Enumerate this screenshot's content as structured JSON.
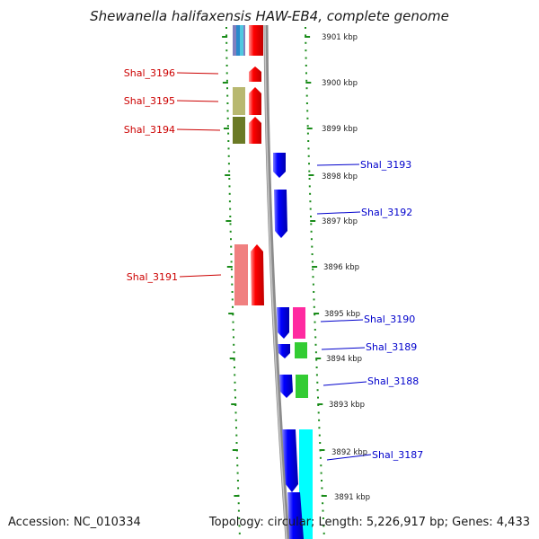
{
  "title": "Shewanella halifaxensis HAW-EB4, complete genome",
  "accession": "Accession: NC_010334",
  "summary": "Topology: circular; Length: 5,226,917 bp; Genes: 4,433",
  "scale_labels": [
    "3901 kbp",
    "3900 kbp",
    "3899 kbp",
    "3898 kbp",
    "3897 kbp",
    "3896 kbp",
    "3895 kbp",
    "3894 kbp",
    "3893 kbp",
    "3892 kbp",
    "3891 kbp"
  ],
  "left_genes": [
    {
      "label": "Shal_3196",
      "color": "#ff0000"
    },
    {
      "label": "Shal_3195",
      "color": "#ff0000"
    },
    {
      "label": "Shal_3194",
      "color": "#ff0000"
    },
    {
      "label": "Shal_3191",
      "color": "#ff0000"
    }
  ],
  "right_genes": [
    {
      "label": "Shal_3193",
      "color": "#0000ff"
    },
    {
      "label": "Shal_3192",
      "color": "#0000ff"
    },
    {
      "label": "Shal_3190",
      "color": "#0000ff"
    },
    {
      "label": "Shal_3189",
      "color": "#0000ff"
    },
    {
      "label": "Shal_3188",
      "color": "#0000ff"
    },
    {
      "label": "Shal_3187",
      "color": "#0000ff"
    }
  ],
  "colors": {
    "forward": "#ff0000",
    "reverse": "#0000ff",
    "backbone": "#8c8c8c",
    "ticks": "#1a8c1a",
    "cog_olive": "#b8b870",
    "cog_dark_olive": "#6b7a26",
    "cog_pink": "#f08080",
    "cog_magenta": "#ff2aa0",
    "cog_green": "#33cc33",
    "cog_cyan": "#00ffff"
  }
}
